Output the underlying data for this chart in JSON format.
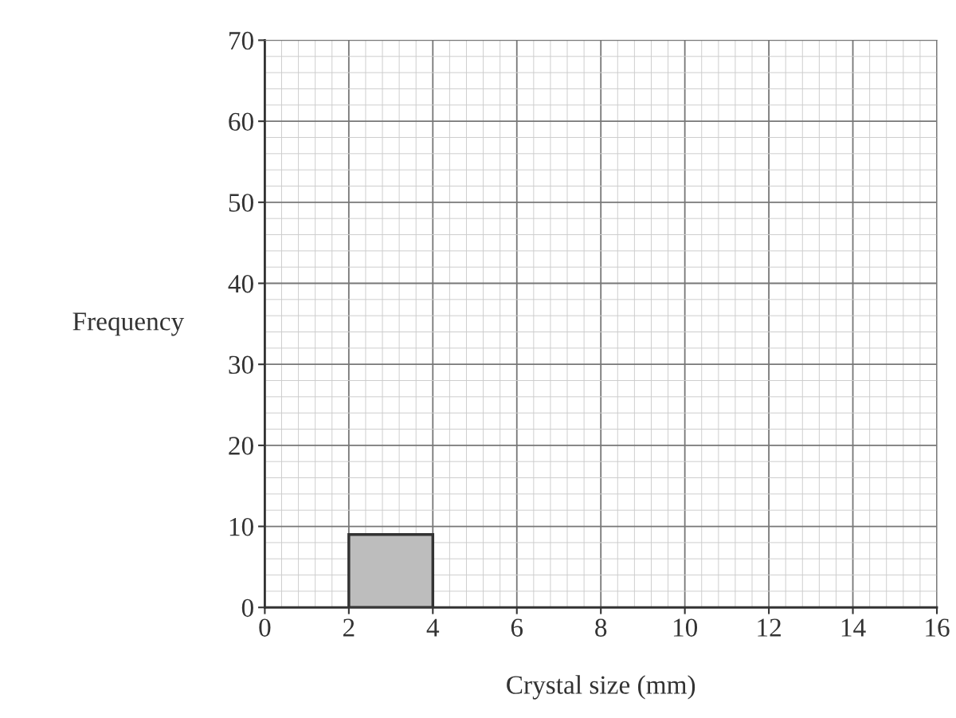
{
  "chart_data": {
    "type": "histogram",
    "xlabel": "Crystal size (mm)",
    "ylabel": "Frequency",
    "bins": [
      2,
      4
    ],
    "values": [
      9
    ],
    "color": "#bdbdbd",
    "xlim": [
      0,
      16
    ],
    "xticks": [
      0,
      2,
      4,
      6,
      8,
      10,
      12,
      14,
      16
    ],
    "ylim": [
      0,
      70
    ],
    "yticks": [
      0,
      10,
      20,
      30,
      40,
      50,
      60,
      70
    ],
    "grid": true
  }
}
